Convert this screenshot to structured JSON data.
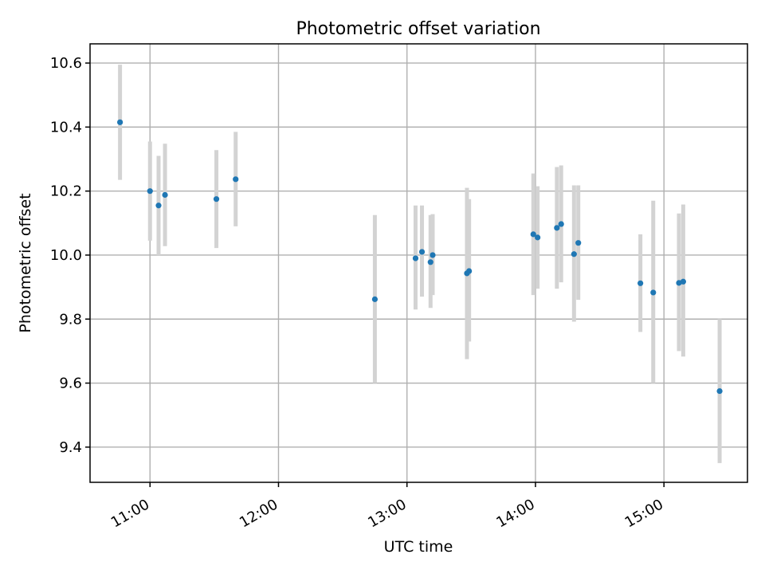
{
  "chart_data": {
    "type": "scatter",
    "title": "Photometric offset variation",
    "xlabel": "UTC time",
    "ylabel": "Photometric offset",
    "xlim": [
      "10:32",
      "15:39"
    ],
    "ylim": [
      9.29,
      10.66
    ],
    "xticks": [
      "11:00",
      "12:00",
      "13:00",
      "14:00",
      "15:00"
    ],
    "yticks": [
      9.4,
      9.6,
      9.8,
      10.0,
      10.2,
      10.4,
      10.6
    ],
    "grid": true,
    "colors": {
      "points": "#1f77b4",
      "errorbars": "#d3d3d3"
    },
    "points": [
      {
        "t": "10:46",
        "y": 10.415,
        "lo": 10.235,
        "hi": 10.595
      },
      {
        "t": "11:00",
        "y": 10.2,
        "lo": 10.045,
        "hi": 10.355
      },
      {
        "t": "11:04",
        "y": 10.155,
        "lo": 10.0,
        "hi": 10.31
      },
      {
        "t": "11:07",
        "y": 10.188,
        "lo": 10.028,
        "hi": 10.348
      },
      {
        "t": "11:31",
        "y": 10.175,
        "lo": 10.022,
        "hi": 10.328
      },
      {
        "t": "11:40",
        "y": 10.237,
        "lo": 10.09,
        "hi": 10.385
      },
      {
        "t": "12:45",
        "y": 9.862,
        "lo": 9.6,
        "hi": 10.125
      },
      {
        "t": "13:04",
        "y": 9.99,
        "lo": 9.83,
        "hi": 10.155
      },
      {
        "t": "13:07",
        "y": 10.01,
        "lo": 9.87,
        "hi": 10.155
      },
      {
        "t": "13:11",
        "y": 9.978,
        "lo": 9.835,
        "hi": 10.125
      },
      {
        "t": "13:12",
        "y": 10.0,
        "lo": 9.875,
        "hi": 10.128
      },
      {
        "t": "13:28",
        "y": 9.943,
        "lo": 9.675,
        "hi": 10.21
      },
      {
        "t": "13:29",
        "y": 9.95,
        "lo": 9.73,
        "hi": 10.175
      },
      {
        "t": "13:59",
        "y": 10.065,
        "lo": 9.875,
        "hi": 10.255
      },
      {
        "t": "14:01",
        "y": 10.055,
        "lo": 9.895,
        "hi": 10.215
      },
      {
        "t": "14:10",
        "y": 10.085,
        "lo": 9.895,
        "hi": 10.275
      },
      {
        "t": "14:12",
        "y": 10.097,
        "lo": 9.915,
        "hi": 10.28
      },
      {
        "t": "14:18",
        "y": 10.003,
        "lo": 9.792,
        "hi": 10.218
      },
      {
        "t": "14:20",
        "y": 10.038,
        "lo": 9.86,
        "hi": 10.218
      },
      {
        "t": "14:49",
        "y": 9.912,
        "lo": 9.76,
        "hi": 10.065
      },
      {
        "t": "14:55",
        "y": 9.883,
        "lo": 9.6,
        "hi": 10.17
      },
      {
        "t": "15:07",
        "y": 9.913,
        "lo": 9.7,
        "hi": 10.13
      },
      {
        "t": "15:09",
        "y": 9.917,
        "lo": 9.683,
        "hi": 10.158
      },
      {
        "t": "15:26",
        "y": 9.575,
        "lo": 9.35,
        "hi": 9.8
      }
    ]
  }
}
